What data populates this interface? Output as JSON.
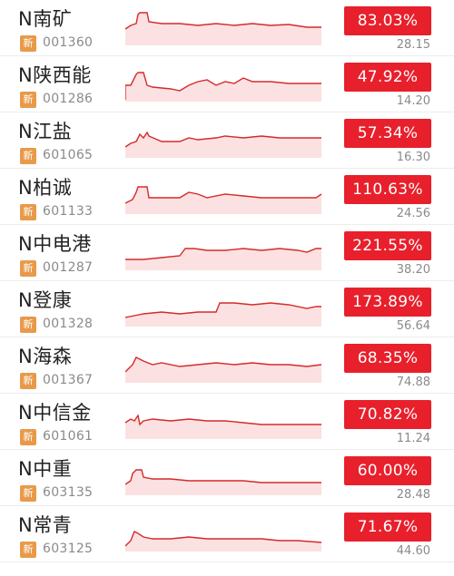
{
  "badge_label": "新",
  "colors": {
    "up_red": "#e8202c",
    "badge_orange": "#e89a4a",
    "line_red": "#d62a2a"
  },
  "stocks": [
    {
      "name": "N南矿",
      "code": "001360",
      "change": "83.03%",
      "price": "28.15"
    },
    {
      "name": "N陕西能",
      "code": "001286",
      "change": "47.92%",
      "price": "14.20"
    },
    {
      "name": "N江盐",
      "code": "601065",
      "change": "57.34%",
      "price": "16.30"
    },
    {
      "name": "N柏诚",
      "code": "601133",
      "change": "110.63%",
      "price": "24.56"
    },
    {
      "name": "N中电港",
      "code": "001287",
      "change": "221.55%",
      "price": "38.20"
    },
    {
      "name": "N登康",
      "code": "001328",
      "change": "173.89%",
      "price": "56.64"
    },
    {
      "name": "N海森",
      "code": "001367",
      "change": "68.35%",
      "price": "74.88"
    },
    {
      "name": "N中信金",
      "code": "601061",
      "change": "70.82%",
      "price": "11.24"
    },
    {
      "name": "N中重",
      "code": "603135",
      "change": "60.00%",
      "price": "28.48"
    },
    {
      "name": "N常青",
      "code": "603125",
      "change": "71.67%",
      "price": "44.60"
    }
  ]
}
